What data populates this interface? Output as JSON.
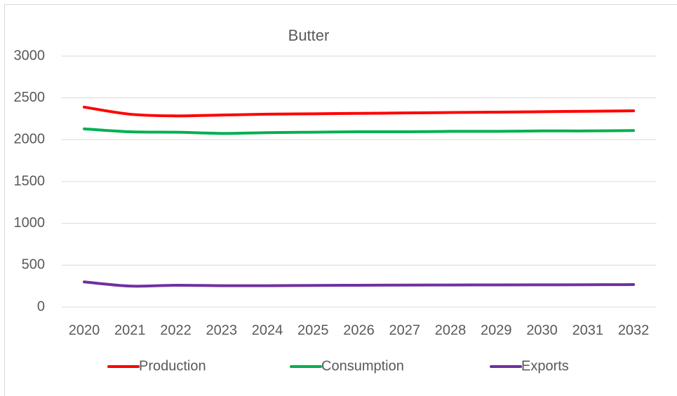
{
  "chart_data": {
    "type": "line",
    "title": "Butter",
    "categories": [
      "2020",
      "2021",
      "2022",
      "2023",
      "2024",
      "2025",
      "2026",
      "2027",
      "2028",
      "2029",
      "2030",
      "2031",
      "2032"
    ],
    "series": [
      {
        "name": "Production",
        "color": "#ff0000",
        "values": [
          2390,
          2305,
          2285,
          2295,
          2305,
          2310,
          2315,
          2320,
          2325,
          2330,
          2335,
          2340,
          2345
        ]
      },
      {
        "name": "Consumption",
        "color": "#00b050",
        "values": [
          2130,
          2095,
          2090,
          2075,
          2085,
          2090,
          2095,
          2095,
          2100,
          2100,
          2105,
          2105,
          2110
        ]
      },
      {
        "name": "Exports",
        "color": "#7030a0",
        "values": [
          300,
          250,
          260,
          255,
          255,
          258,
          260,
          262,
          263,
          264,
          265,
          266,
          268
        ]
      }
    ],
    "ylim": [
      0,
      3000
    ],
    "yticks": [
      0,
      500,
      1000,
      1500,
      2000,
      2500,
      3000
    ],
    "grid": true,
    "legend": "bottom"
  }
}
